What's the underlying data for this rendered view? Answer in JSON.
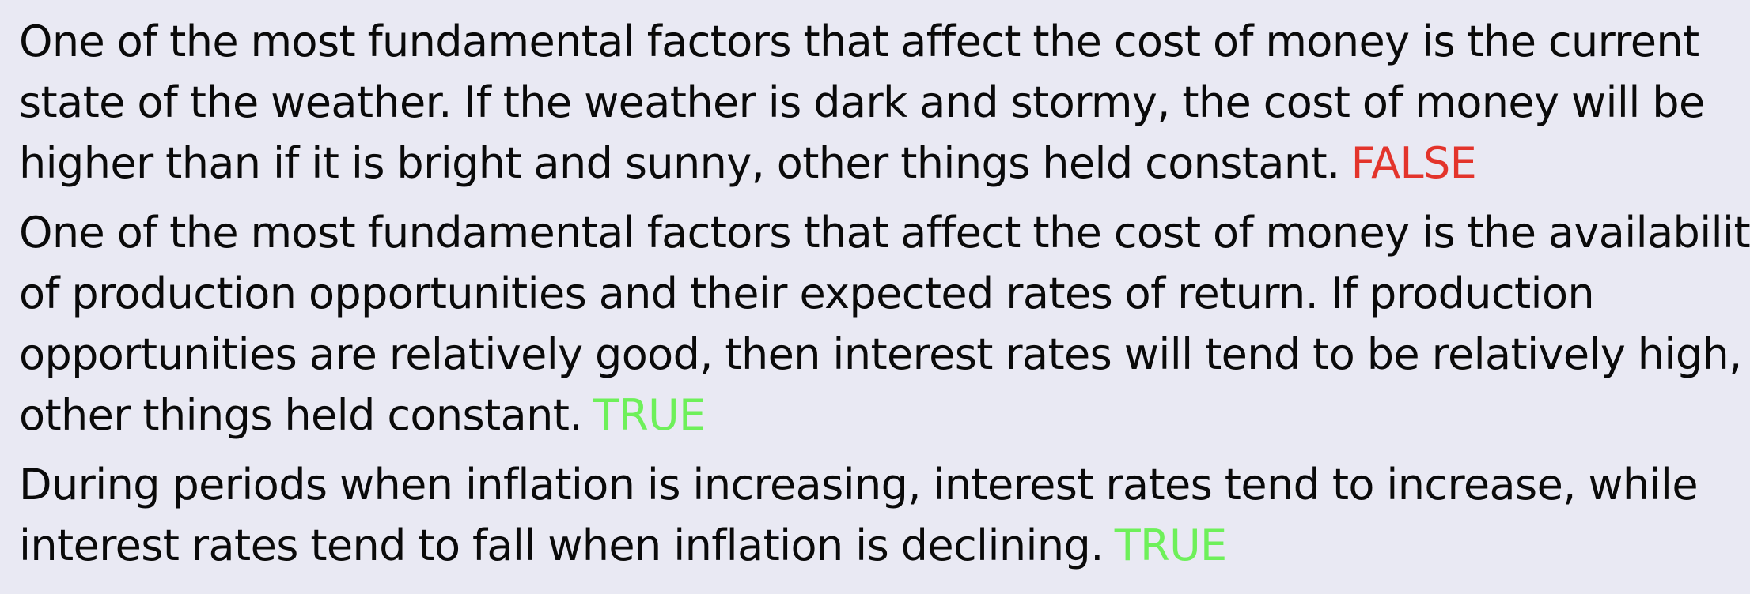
{
  "statements": [
    {
      "lines": [
        "One of the most fundamental factors that affect the cost of money is the current",
        "state of the weather. If the weather is dark and stormy, the cost of money will be",
        "higher than if it is bright and sunny, other things held constant."
      ],
      "verdict": "FALSE",
      "verdict_color": "#e3342b"
    },
    {
      "lines": [
        "One of the most fundamental factors that affect the cost of money is the availability",
        "of production opportunities and their expected rates of return. If production",
        "opportunities are relatively good, then interest rates will tend to be relatively high,",
        "other things held constant."
      ],
      "verdict": "TRUE",
      "verdict_color": "#6ef05a"
    },
    {
      "lines": [
        "During periods when inflation is increasing, interest rates tend to increase, while",
        "interest rates tend to fall when inflation is declining."
      ],
      "verdict": "TRUE",
      "verdict_color": "#6ef05a"
    }
  ]
}
